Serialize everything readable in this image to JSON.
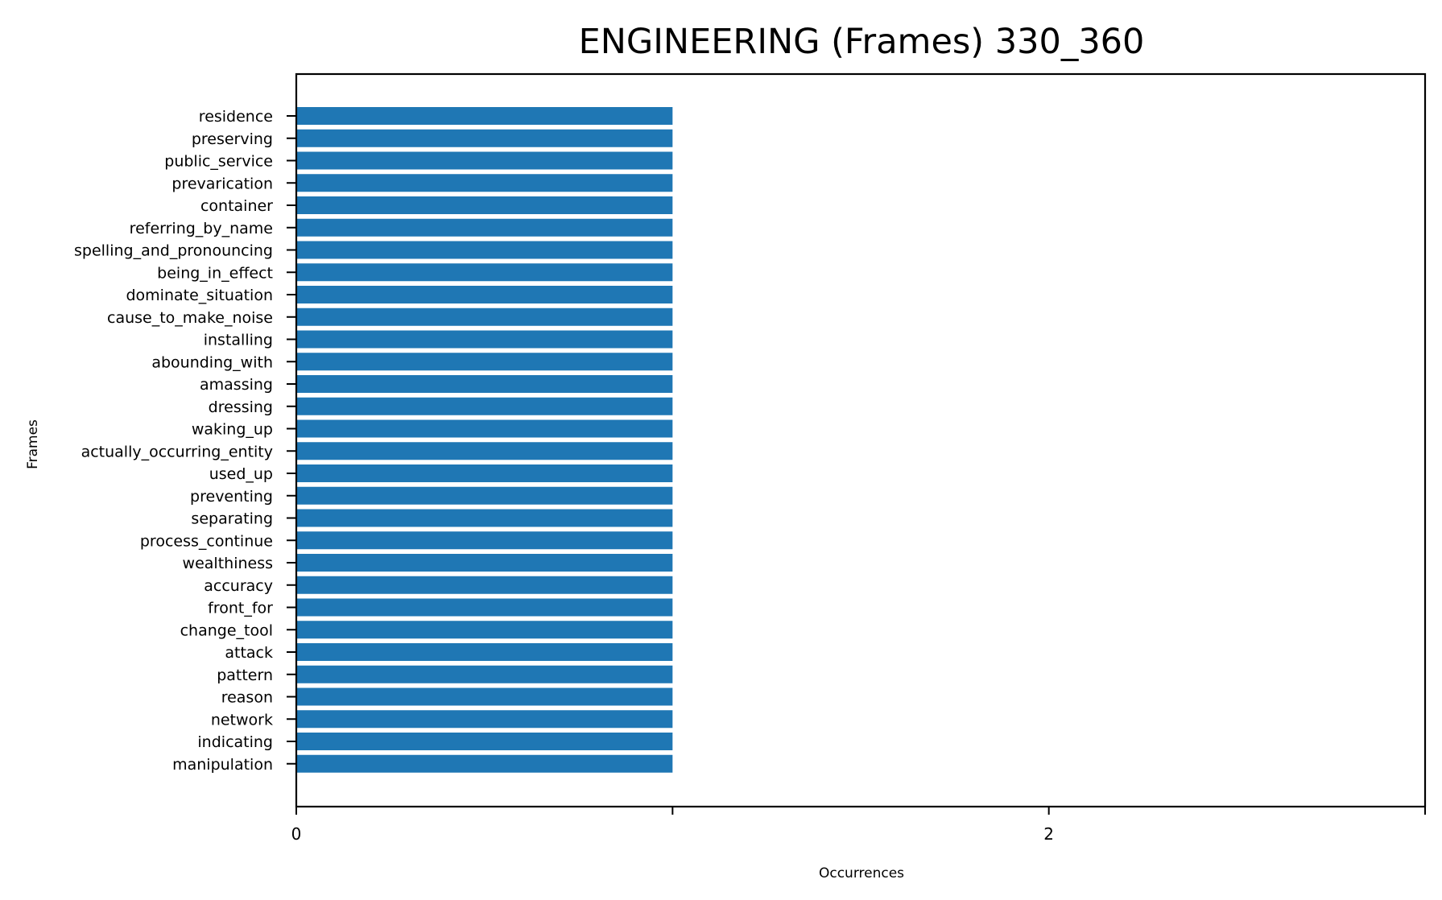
{
  "chart_data": {
    "type": "bar",
    "orientation": "horizontal",
    "title": "ENGINEERING (Frames) 330_360",
    "xlabel": "Occurrences",
    "ylabel": "Frames",
    "categories": [
      "residence",
      "preserving",
      "public_service",
      "prevarication",
      "container",
      "referring_by_name",
      "spelling_and_pronouncing",
      "being_in_effect",
      "dominate_situation",
      "cause_to_make_noise",
      "installing",
      "abounding_with",
      "amassing",
      "dressing",
      "waking_up",
      "actually_occurring_entity",
      "used_up",
      "preventing",
      "separating",
      "process_continue",
      "wealthiness",
      "accuracy",
      "front_for",
      "change_tool",
      "attack",
      "pattern",
      "reason",
      "network",
      "indicating",
      "manipulation"
    ],
    "values": [
      1,
      1,
      1,
      1,
      1,
      1,
      1,
      1,
      1,
      1,
      1,
      1,
      1,
      1,
      1,
      1,
      1,
      1,
      1,
      1,
      1,
      1,
      1,
      1,
      1,
      1,
      1,
      1,
      1,
      1
    ],
    "xlim": [
      0,
      3
    ],
    "xticks": [
      0,
      1,
      2,
      3
    ],
    "xtick_labels": [
      "0",
      "",
      "2",
      ""
    ],
    "grid": false,
    "legend": "none",
    "bar_color": "#1f77b4"
  }
}
